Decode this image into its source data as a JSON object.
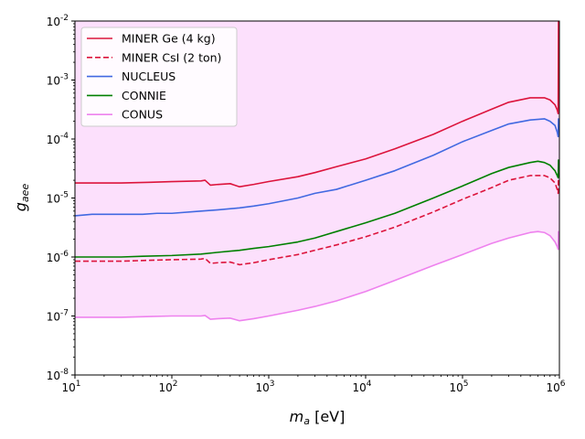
{
  "chart_data": {
    "type": "line",
    "xscale": "log",
    "yscale": "log",
    "xlim": [
      10,
      1000000
    ],
    "ylim": [
      1e-08,
      0.01
    ],
    "xlabel": {
      "base": "m",
      "sub": "a",
      "unit": " [eV]"
    },
    "ylabel": {
      "base": "g",
      "sub": "aee"
    },
    "x_tick_labels": [
      {
        "base": "10",
        "exp": "1"
      },
      {
        "base": "10",
        "exp": "2"
      },
      {
        "base": "10",
        "exp": "3"
      },
      {
        "base": "10",
        "exp": "4"
      },
      {
        "base": "10",
        "exp": "5"
      },
      {
        "base": "10",
        "exp": "6"
      }
    ],
    "y_tick_labels": [
      {
        "base": "10",
        "exp": "-8"
      },
      {
        "base": "10",
        "exp": "-7"
      },
      {
        "base": "10",
        "exp": "-6"
      },
      {
        "base": "10",
        "exp": "-5"
      },
      {
        "base": "10",
        "exp": "-4"
      },
      {
        "base": "10",
        "exp": "-3"
      },
      {
        "base": "10",
        "exp": "-2"
      }
    ],
    "legend_position": "upper-left",
    "grid": false,
    "series": [
      {
        "name": "MINER Ge (4 kg)",
        "color": "#dc143c",
        "dash": "solid",
        "fill": "#f7cfd6",
        "x": [
          10,
          30,
          60,
          100,
          200,
          220,
          250,
          300,
          400,
          500,
          700,
          1000,
          2000,
          3000,
          5000,
          10000,
          20000,
          50000,
          100000,
          200000,
          300000,
          500000,
          700000,
          800000,
          900000,
          950000,
          970000
        ],
        "y": [
          1.8e-05,
          1.8e-05,
          1.85e-05,
          1.9e-05,
          1.95e-05,
          2e-05,
          1.65e-05,
          1.7e-05,
          1.75e-05,
          1.55e-05,
          1.7e-05,
          1.9e-05,
          2.3e-05,
          2.7e-05,
          3.4e-05,
          4.6e-05,
          6.8e-05,
          0.00012,
          0.0002,
          0.00032,
          0.00042,
          0.0005,
          0.0005,
          0.00046,
          0.00038,
          0.00031,
          0.00027
        ]
      },
      {
        "name": "MINER CsI (2 ton)",
        "color": "#dc143c",
        "dash": "dashed",
        "fill": "#f7cfd6",
        "x": [
          10,
          30,
          60,
          100,
          200,
          220,
          250,
          300,
          400,
          500,
          700,
          1000,
          2000,
          3000,
          5000,
          10000,
          20000,
          50000,
          100000,
          200000,
          300000,
          500000,
          700000,
          800000,
          900000,
          950000,
          970000
        ],
        "y": [
          8.5e-07,
          8.5e-07,
          8.8e-07,
          9e-07,
          9.2e-07,
          9.5e-07,
          7.8e-07,
          8e-07,
          8.2e-07,
          7.4e-07,
          8e-07,
          9e-07,
          1.1e-06,
          1.3e-06,
          1.6e-06,
          2.2e-06,
          3.2e-06,
          5.8e-06,
          9.5e-06,
          1.5e-05,
          2e-05,
          2.4e-05,
          2.4e-05,
          2.2e-05,
          1.8e-05,
          1.4e-05,
          1.2e-05
        ]
      },
      {
        "name": "NUCLEUS",
        "color": "#4169e1",
        "dash": "solid",
        "fill": "#d9e0fa",
        "x": [
          10,
          15,
          30,
          50,
          70,
          100,
          200,
          300,
          500,
          700,
          1000,
          2000,
          3000,
          5000,
          10000,
          20000,
          50000,
          100000,
          200000,
          300000,
          500000,
          700000,
          800000,
          900000,
          950000,
          970000
        ],
        "y": [
          5e-06,
          5.3e-06,
          5.3e-06,
          5.3e-06,
          5.5e-06,
          5.5e-06,
          6e-06,
          6.3e-06,
          6.8e-06,
          7.3e-06,
          8e-06,
          1e-05,
          1.2e-05,
          1.4e-05,
          2e-05,
          2.9e-05,
          5.3e-05,
          9e-05,
          0.00014,
          0.00018,
          0.00021,
          0.00022,
          0.0002,
          0.00017,
          0.00013,
          0.00011
        ]
      },
      {
        "name": "CONNIE",
        "color": "#008000",
        "dash": "solid",
        "fill": "#cce6cc",
        "x": [
          10,
          30,
          50,
          100,
          200,
          300,
          500,
          700,
          1000,
          2000,
          3000,
          5000,
          10000,
          20000,
          50000,
          100000,
          200000,
          300000,
          500000,
          600000,
          700000,
          800000,
          900000,
          950000,
          970000
        ],
        "y": [
          1e-06,
          1e-06,
          1.03e-06,
          1.06e-06,
          1.12e-06,
          1.2e-06,
          1.3e-06,
          1.4e-06,
          1.5e-06,
          1.8e-06,
          2.1e-06,
          2.7e-06,
          3.8e-06,
          5.5e-06,
          1e-05,
          1.6e-05,
          2.6e-05,
          3.3e-05,
          4e-05,
          4.2e-05,
          4e-05,
          3.6e-05,
          2.9e-05,
          2.4e-05,
          2.2e-05
        ]
      },
      {
        "name": "CONUS",
        "color": "#ee82ee",
        "dash": "solid",
        "fill": "#fce0fc",
        "x": [
          10,
          30,
          60,
          100,
          200,
          220,
          250,
          300,
          400,
          500,
          700,
          1000,
          2000,
          3000,
          5000,
          10000,
          20000,
          50000,
          100000,
          200000,
          300000,
          500000,
          600000,
          700000,
          800000,
          900000,
          950000,
          970000
        ],
        "y": [
          9.5e-08,
          9.5e-08,
          9.8e-08,
          1e-07,
          1e-07,
          1.02e-07,
          8.8e-08,
          9e-08,
          9.2e-08,
          8.3e-08,
          9e-08,
          1e-07,
          1.25e-07,
          1.45e-07,
          1.8e-07,
          2.6e-07,
          4e-07,
          7.2e-07,
          1.1e-06,
          1.7e-06,
          2.1e-06,
          2.6e-06,
          2.7e-06,
          2.6e-06,
          2.3e-06,
          1.8e-06,
          1.5e-06,
          1.35e-06
        ]
      }
    ]
  }
}
